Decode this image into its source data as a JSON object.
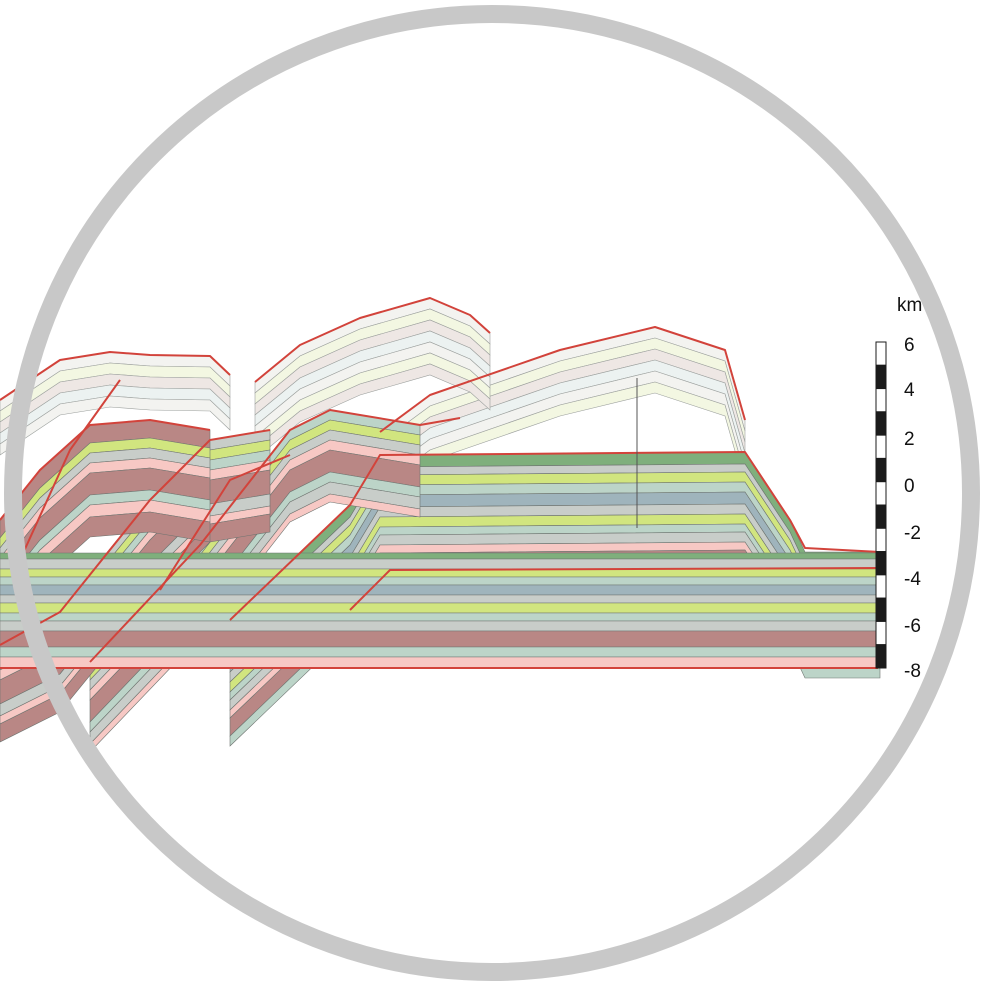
{
  "scale_bar": {
    "unit": "km",
    "ticks": [
      "6",
      "4",
      "2",
      "0",
      "-2",
      "-4",
      "-6",
      "-8"
    ]
  },
  "colors": {
    "frame_circle": "#c8c8c8",
    "fault_line": "#d2433b",
    "layer_palette": [
      "#bcd4c8",
      "#d1e57f",
      "#9fb4bc",
      "#b98785",
      "#f7c8c4",
      "#c8cdc9",
      "#7faf7c",
      "#c8cdc9"
    ],
    "eroded_section_palette": [
      "#f1f1ee",
      "#f2f6dd",
      "#ece3e0",
      "#e9f0ef"
    ]
  }
}
